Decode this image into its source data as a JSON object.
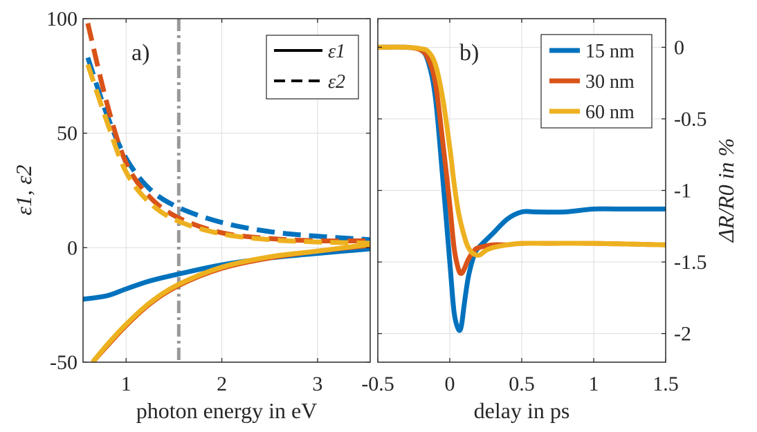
{
  "colors": {
    "blue": "#0072BD",
    "orange": "#D95319",
    "yellow": "#EDB120",
    "grid": "#dddddd",
    "axis": "#262626",
    "marker_line": "#999999"
  },
  "chart_data": [
    {
      "panel": "a)",
      "type": "line",
      "xlabel": "photon energy in eV",
      "ylabel": "ε1, ε2",
      "xlim": [
        0.55,
        3.55
      ],
      "ylim": [
        -50,
        100
      ],
      "xticks": [
        1,
        2,
        3
      ],
      "yticks": [
        -50,
        0,
        50,
        100
      ],
      "xtick_labels": [
        "1",
        "2",
        "3"
      ],
      "ytick_labels": [
        "-50",
        "0",
        "50",
        "100"
      ],
      "grid": true,
      "legend_position": "top-right",
      "legend": [
        {
          "label": "ε1",
          "style": "solid"
        },
        {
          "label": "ε2",
          "style": "dashed"
        }
      ],
      "vertical_marker": {
        "x": 1.55,
        "style": "dash-dot"
      },
      "series": [
        {
          "color": "blue",
          "quantity": "ε1",
          "style": "solid",
          "x": [
            0.55,
            0.8,
            1.0,
            1.25,
            1.55,
            2.0,
            2.5,
            3.0,
            3.55
          ],
          "y": [
            -22.5,
            -21,
            -18,
            -14.5,
            -11.5,
            -7.5,
            -4.5,
            -2.5,
            -0.5
          ]
        },
        {
          "color": "orange",
          "quantity": "ε1",
          "style": "solid",
          "x": [
            0.65,
            0.8,
            1.0,
            1.25,
            1.55,
            2.0,
            2.5,
            3.0,
            3.55
          ],
          "y": [
            -50,
            -43,
            -34,
            -24.5,
            -16.5,
            -9,
            -4.5,
            -1.5,
            1
          ]
        },
        {
          "color": "yellow",
          "quantity": "ε1",
          "style": "solid",
          "x": [
            0.65,
            0.8,
            1.0,
            1.25,
            1.55,
            2.0,
            2.5,
            3.0,
            3.55
          ],
          "y": [
            -50,
            -42.5,
            -33.5,
            -24,
            -16,
            -8.5,
            -4,
            -1.5,
            1.5
          ]
        },
        {
          "color": "blue",
          "quantity": "ε2",
          "style": "dashed",
          "x": [
            0.6,
            0.8,
            1.0,
            1.25,
            1.55,
            2.0,
            2.5,
            3.0,
            3.55
          ],
          "y": [
            83,
            58,
            39,
            25.5,
            17.5,
            11,
            7,
            5,
            3.5
          ]
        },
        {
          "color": "orange",
          "quantity": "ε2",
          "style": "dashed",
          "x": [
            0.6,
            0.8,
            1.0,
            1.25,
            1.55,
            2.0,
            2.5,
            3.0,
            3.55
          ],
          "y": [
            98,
            63,
            37,
            22,
            13,
            6.5,
            4,
            3,
            3
          ]
        },
        {
          "color": "yellow",
          "quantity": "ε2",
          "style": "dashed",
          "x": [
            0.6,
            0.8,
            1.0,
            1.25,
            1.55,
            2.0,
            2.5,
            3.0,
            3.55
          ],
          "y": [
            80,
            55,
            33,
            19.5,
            11.5,
            6,
            3.5,
            2.5,
            2
          ]
        }
      ]
    },
    {
      "panel": "b)",
      "type": "line",
      "xlabel": "delay in ps",
      "ylabel": "ΔR/R0 in %",
      "xlim": [
        -0.5,
        1.5
      ],
      "ylim": [
        -2.2,
        0.2
      ],
      "xticks": [
        -0.5,
        0,
        0.5,
        1,
        1.5
      ],
      "yticks": [
        -2,
        -1.5,
        -1,
        -0.5,
        0
      ],
      "xtick_labels": [
        "-0.5",
        "0",
        "0.5",
        "1",
        "1.5"
      ],
      "ytick_labels": [
        "-2",
        "-1.5",
        "-1",
        "-0.5",
        "0"
      ],
      "y_axis_side": "right",
      "grid": true,
      "legend_position": "top-right",
      "series": [
        {
          "name": "15 nm",
          "color": "blue",
          "x": [
            -0.5,
            -0.3,
            -0.2,
            -0.15,
            -0.1,
            -0.05,
            0,
            0.03,
            0.06,
            0.08,
            0.1,
            0.13,
            0.17,
            0.2,
            0.3,
            0.4,
            0.5,
            0.6,
            0.8,
            1.0,
            1.2,
            1.5
          ],
          "y": [
            0,
            0,
            -0.02,
            -0.1,
            -0.35,
            -0.9,
            -1.5,
            -1.85,
            -1.97,
            -1.95,
            -1.8,
            -1.6,
            -1.45,
            -1.4,
            -1.3,
            -1.2,
            -1.15,
            -1.15,
            -1.15,
            -1.13,
            -1.13,
            -1.13
          ]
        },
        {
          "name": "30 nm",
          "color": "orange",
          "x": [
            -0.5,
            -0.3,
            -0.2,
            -0.15,
            -0.1,
            -0.05,
            0,
            0.03,
            0.06,
            0.08,
            0.1,
            0.13,
            0.17,
            0.2,
            0.3,
            0.4,
            0.5,
            0.7,
            1.0,
            1.5
          ],
          "y": [
            0,
            0,
            -0.02,
            -0.08,
            -0.25,
            -0.65,
            -1.1,
            -1.4,
            -1.55,
            -1.58,
            -1.55,
            -1.48,
            -1.42,
            -1.4,
            -1.38,
            -1.38,
            -1.37,
            -1.37,
            -1.37,
            -1.38
          ]
        },
        {
          "name": "60 nm",
          "color": "yellow",
          "x": [
            -0.5,
            -0.3,
            -0.2,
            -0.15,
            -0.1,
            -0.05,
            0,
            0.03,
            0.06,
            0.09,
            0.12,
            0.15,
            0.18,
            0.21,
            0.25,
            0.3,
            0.4,
            0.5,
            0.7,
            1.0,
            1.5
          ],
          "y": [
            0,
            0,
            -0.01,
            -0.03,
            -0.12,
            -0.35,
            -0.7,
            -0.95,
            -1.15,
            -1.28,
            -1.38,
            -1.43,
            -1.45,
            -1.45,
            -1.42,
            -1.4,
            -1.38,
            -1.37,
            -1.37,
            -1.37,
            -1.38
          ]
        }
      ]
    }
  ]
}
